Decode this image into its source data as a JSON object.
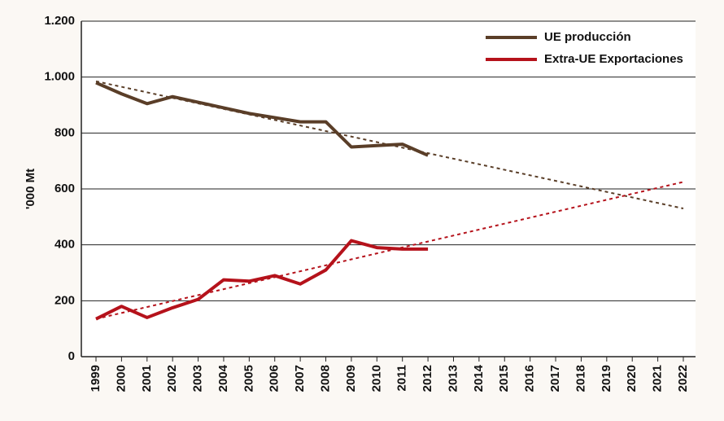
{
  "chart_data": {
    "type": "line",
    "y_label": "'000 Mt",
    "categories": [
      "1999",
      "2000",
      "2001",
      "2002",
      "2003",
      "2004",
      "2005",
      "2006",
      "2007",
      "2008",
      "2009",
      "2010",
      "2011",
      "2012",
      "2013",
      "2014",
      "2015",
      "2016",
      "2017",
      "2018",
      "2019",
      "2020",
      "2021",
      "2022"
    ],
    "series": [
      {
        "name": "UE producción",
        "color": "#5a3e28",
        "values": [
          980,
          940,
          905,
          930,
          910,
          890,
          870,
          855,
          840,
          840,
          750,
          755,
          760,
          720,
          null,
          null,
          null,
          null,
          null,
          null,
          null,
          null,
          null,
          null
        ]
      },
      {
        "name": "Extra-UE Exportaciones",
        "color": "#b5121b",
        "values": [
          135,
          180,
          140,
          175,
          205,
          275,
          270,
          290,
          260,
          310,
          415,
          390,
          385,
          385,
          null,
          null,
          null,
          null,
          null,
          null,
          null,
          null,
          null,
          null
        ]
      }
    ],
    "trendlines": [
      {
        "color": "#5a3e28",
        "start": 985,
        "end": 530
      },
      {
        "color": "#b5121b",
        "start": 135,
        "end": 625
      }
    ],
    "ylim": [
      0,
      1200
    ],
    "yticks": [
      0,
      200,
      400,
      600,
      800,
      {
        "value": 1000,
        "label": "1.000"
      },
      {
        "value": 1200,
        "label": "1.200"
      }
    ],
    "grid": true,
    "legend": "top-right"
  }
}
